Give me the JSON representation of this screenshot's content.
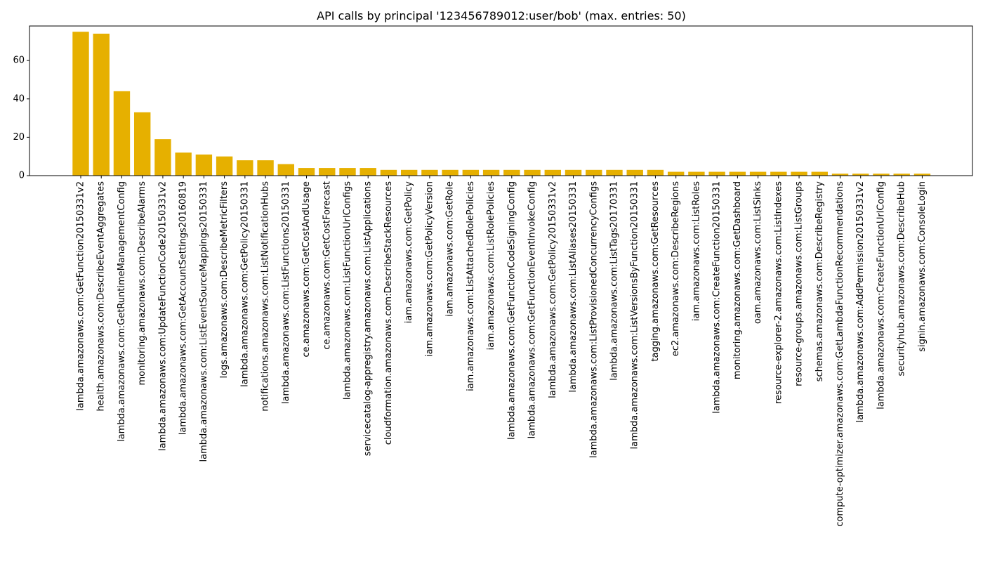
{
  "chart_data": {
    "type": "bar",
    "title": "API calls by principal '123456789012:user/bob' (max. entries: 50)",
    "xlabel": "",
    "ylabel": "",
    "ylim": [
      0,
      78
    ],
    "yticks": [
      0,
      20,
      40,
      60
    ],
    "grid": false,
    "bar_color": "#e6b000",
    "categories": [
      "lambda.amazonaws.com:GetFunction20150331v2",
      "health.amazonaws.com:DescribeEventAggregates",
      "lambda.amazonaws.com:GetRuntimeManagementConfig",
      "monitoring.amazonaws.com:DescribeAlarms",
      "lambda.amazonaws.com:UpdateFunctionCode20150331v2",
      "lambda.amazonaws.com:GetAccountSettings20160819",
      "lambda.amazonaws.com:ListEventSourceMappings20150331",
      "logs.amazonaws.com:DescribeMetricFilters",
      "lambda.amazonaws.com:GetPolicy20150331",
      "notifications.amazonaws.com:ListNotificationHubs",
      "lambda.amazonaws.com:ListFunctions20150331",
      "ce.amazonaws.com:GetCostAndUsage",
      "ce.amazonaws.com:GetCostForecast",
      "lambda.amazonaws.com:ListFunctionUrlConfigs",
      "servicecatalog-appregistry.amazonaws.com:ListApplications",
      "cloudformation.amazonaws.com:DescribeStackResources",
      "iam.amazonaws.com:GetPolicy",
      "iam.amazonaws.com:GetPolicyVersion",
      "iam.amazonaws.com:GetRole",
      "iam.amazonaws.com:ListAttachedRolePolicies",
      "iam.amazonaws.com:ListRolePolicies",
      "lambda.amazonaws.com:GetFunctionCodeSigningConfig",
      "lambda.amazonaws.com:GetFunctionEventInvokeConfig",
      "lambda.amazonaws.com:GetPolicy20150331v2",
      "lambda.amazonaws.com:ListAliases20150331",
      "lambda.amazonaws.com:ListProvisionedConcurrencyConfigs",
      "lambda.amazonaws.com:ListTags20170331",
      "lambda.amazonaws.com:ListVersionsByFunction20150331",
      "tagging.amazonaws.com:GetResources",
      "ec2.amazonaws.com:DescribeRegions",
      "iam.amazonaws.com:ListRoles",
      "lambda.amazonaws.com:CreateFunction20150331",
      "monitoring.amazonaws.com:GetDashboard",
      "oam.amazonaws.com:ListSinks",
      "resource-explorer-2.amazonaws.com:ListIndexes",
      "resource-groups.amazonaws.com:ListGroups",
      "schemas.amazonaws.com:DescribeRegistry",
      "compute-optimizer.amazonaws.com:GetLambdaFunctionRecommendations",
      "lambda.amazonaws.com:AddPermission20150331v2",
      "lambda.amazonaws.com:CreateFunctionUrlConfig",
      "securityhub.amazonaws.com:DescribeHub",
      "signin.amazonaws.com:ConsoleLogin"
    ],
    "values": [
      75,
      74,
      44,
      33,
      19,
      12,
      11,
      10,
      8,
      8,
      6,
      4,
      4,
      4,
      4,
      3,
      3,
      3,
      3,
      3,
      3,
      3,
      3,
      3,
      3,
      3,
      3,
      3,
      3,
      2,
      2,
      2,
      2,
      2,
      2,
      2,
      2,
      1,
      1,
      1,
      1,
      1
    ]
  }
}
